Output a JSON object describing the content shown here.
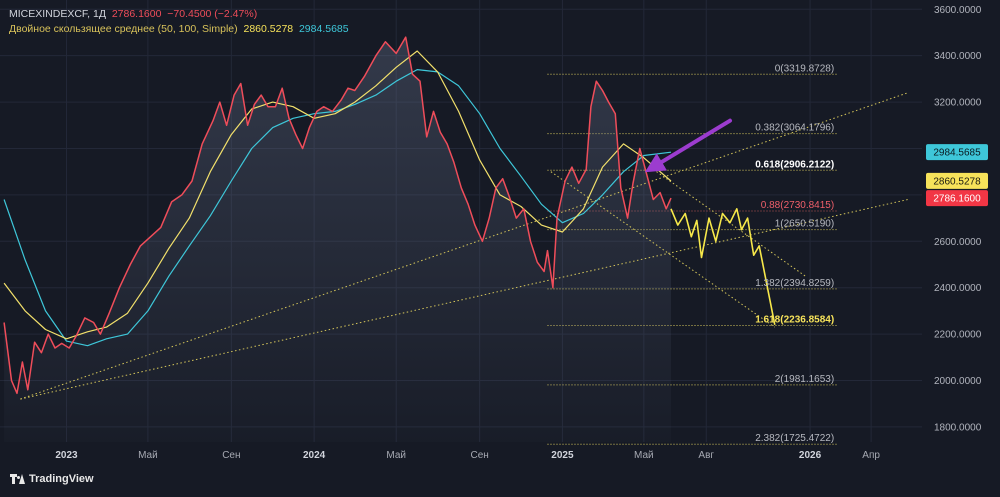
{
  "header": {
    "symbol": "MICEXINDEXCF, 1Д",
    "price": "2786.1600",
    "change": "−70.4500 (−2.47%)",
    "indicator_name": "Двойное скользящее среднее (50, 100, Simple)",
    "ma_fast": "2860.5278",
    "ma_slow": "2984.5685"
  },
  "brand": {
    "name": "TradingView",
    "icon": "tradingview-logo-icon"
  },
  "colors": {
    "background": "#161a25",
    "price_line": "#ef4d5a",
    "ma_fast": "#f2e06b",
    "ma_slow": "#3ec7d9",
    "projection": "#f7e84a",
    "fib": "#d4c55a",
    "arrow": "#9c3ccf"
  },
  "chart_data": {
    "type": "line",
    "y_axis": {
      "ylim": [
        1735,
        3640
      ],
      "ticks": [
        "3600.0000",
        "3400.0000",
        "3200.0000",
        "3000.0000",
        "2800.0000",
        "2600.0000",
        "2400.0000",
        "2200.0000",
        "2000.0000",
        "1800.0000"
      ],
      "tick_values": [
        3600,
        3400,
        3200,
        3000,
        2800,
        2600,
        2400,
        2200,
        2000,
        1800
      ]
    },
    "x_axis": {
      "labels": [
        "2023",
        "Май",
        "Сен",
        "2024",
        "Май",
        "Сен",
        "2025",
        "Май",
        "Авг",
        "2026",
        "Апр"
      ],
      "label_dates": [
        "2023-01-01",
        "2023-05-01",
        "2023-09-01",
        "2024-01-01",
        "2024-05-01",
        "2024-09-01",
        "2025-01-01",
        "2025-05-01",
        "2025-08-01",
        "2026-01-01",
        "2026-04-01"
      ],
      "range": [
        "2022-09-25",
        "2026-06-15"
      ],
      "bold_labels": [
        "2023",
        "2024",
        "2025",
        "2026"
      ]
    },
    "grid": true,
    "series": [
      {
        "role": "price",
        "points": [
          [
            "2022-10-01",
            2250
          ],
          [
            "2022-10-12",
            2000
          ],
          [
            "2022-10-20",
            1945
          ],
          [
            "2022-10-28",
            2080
          ],
          [
            "2022-11-05",
            1960
          ],
          [
            "2022-11-15",
            2165
          ],
          [
            "2022-11-25",
            2120
          ],
          [
            "2022-12-05",
            2200
          ],
          [
            "2022-12-15",
            2140
          ],
          [
            "2022-12-25",
            2160
          ],
          [
            "2023-01-05",
            2140
          ],
          [
            "2023-01-15",
            2190
          ],
          [
            "2023-01-28",
            2270
          ],
          [
            "2023-02-10",
            2250
          ],
          [
            "2023-02-20",
            2200
          ],
          [
            "2023-03-05",
            2290
          ],
          [
            "2023-03-20",
            2400
          ],
          [
            "2023-04-05",
            2500
          ],
          [
            "2023-04-20",
            2580
          ],
          [
            "2023-05-05",
            2620
          ],
          [
            "2023-05-20",
            2660
          ],
          [
            "2023-06-05",
            2770
          ],
          [
            "2023-06-20",
            2800
          ],
          [
            "2023-07-05",
            2860
          ],
          [
            "2023-07-20",
            3020
          ],
          [
            "2023-08-05",
            3120
          ],
          [
            "2023-08-15",
            3200
          ],
          [
            "2023-08-25",
            3100
          ],
          [
            "2023-09-05",
            3230
          ],
          [
            "2023-09-15",
            3280
          ],
          [
            "2023-09-25",
            3100
          ],
          [
            "2023-10-05",
            3190
          ],
          [
            "2023-10-15",
            3230
          ],
          [
            "2023-10-25",
            3180
          ],
          [
            "2023-11-05",
            3180
          ],
          [
            "2023-11-15",
            3260
          ],
          [
            "2023-11-25",
            3130
          ],
          [
            "2023-12-05",
            3060
          ],
          [
            "2023-12-15",
            3000
          ],
          [
            "2023-12-25",
            3090
          ],
          [
            "2024-01-05",
            3160
          ],
          [
            "2024-01-15",
            3180
          ],
          [
            "2024-01-28",
            3160
          ],
          [
            "2024-02-10",
            3210
          ],
          [
            "2024-02-20",
            3260
          ],
          [
            "2024-03-01",
            3250
          ],
          [
            "2024-03-15",
            3310
          ],
          [
            "2024-04-01",
            3400
          ],
          [
            "2024-04-15",
            3460
          ],
          [
            "2024-05-01",
            3410
          ],
          [
            "2024-05-15",
            3480
          ],
          [
            "2024-05-25",
            3320
          ],
          [
            "2024-06-05",
            3290
          ],
          [
            "2024-06-15",
            3050
          ],
          [
            "2024-06-25",
            3160
          ],
          [
            "2024-07-05",
            3070
          ],
          [
            "2024-07-15",
            3020
          ],
          [
            "2024-07-25",
            2940
          ],
          [
            "2024-08-05",
            2830
          ],
          [
            "2024-08-15",
            2760
          ],
          [
            "2024-08-25",
            2670
          ],
          [
            "2024-09-05",
            2600
          ],
          [
            "2024-09-15",
            2700
          ],
          [
            "2024-09-25",
            2830
          ],
          [
            "2024-10-05",
            2870
          ],
          [
            "2024-10-15",
            2790
          ],
          [
            "2024-10-25",
            2700
          ],
          [
            "2024-11-05",
            2740
          ],
          [
            "2024-11-15",
            2600
          ],
          [
            "2024-11-25",
            2510
          ],
          [
            "2024-12-05",
            2470
          ],
          [
            "2024-12-10",
            2560
          ],
          [
            "2024-12-18",
            2400
          ],
          [
            "2024-12-24",
            2700
          ],
          [
            "2025-01-05",
            2860
          ],
          [
            "2025-01-15",
            2920
          ],
          [
            "2025-01-25",
            2850
          ],
          [
            "2025-02-05",
            2910
          ],
          [
            "2025-02-12",
            3180
          ],
          [
            "2025-02-20",
            3290
          ],
          [
            "2025-03-01",
            3250
          ],
          [
            "2025-03-10",
            3200
          ],
          [
            "2025-03-20",
            3150
          ],
          [
            "2025-03-28",
            2830
          ],
          [
            "2025-04-07",
            2700
          ],
          [
            "2025-04-15",
            2850
          ],
          [
            "2025-04-25",
            3000
          ],
          [
            "2025-05-05",
            2890
          ],
          [
            "2025-05-15",
            2780
          ],
          [
            "2025-05-25",
            2810
          ],
          [
            "2025-06-03",
            2740
          ],
          [
            "2025-06-10",
            2786
          ]
        ]
      },
      {
        "role": "ma_fast",
        "value_label": "2860.5278",
        "points": [
          [
            "2022-10-01",
            2420
          ],
          [
            "2022-11-01",
            2300
          ],
          [
            "2022-12-01",
            2220
          ],
          [
            "2023-01-01",
            2180
          ],
          [
            "2023-02-01",
            2210
          ],
          [
            "2023-03-01",
            2230
          ],
          [
            "2023-04-01",
            2290
          ],
          [
            "2023-05-01",
            2420
          ],
          [
            "2023-06-01",
            2570
          ],
          [
            "2023-07-01",
            2700
          ],
          [
            "2023-08-01",
            2900
          ],
          [
            "2023-09-01",
            3060
          ],
          [
            "2023-10-01",
            3170
          ],
          [
            "2023-11-01",
            3200
          ],
          [
            "2023-12-01",
            3180
          ],
          [
            "2024-01-01",
            3130
          ],
          [
            "2024-02-01",
            3150
          ],
          [
            "2024-03-01",
            3200
          ],
          [
            "2024-04-01",
            3270
          ],
          [
            "2024-05-01",
            3350
          ],
          [
            "2024-06-01",
            3420
          ],
          [
            "2024-07-01",
            3330
          ],
          [
            "2024-08-01",
            3160
          ],
          [
            "2024-09-01",
            2950
          ],
          [
            "2024-10-01",
            2800
          ],
          [
            "2024-11-01",
            2750
          ],
          [
            "2024-12-01",
            2670
          ],
          [
            "2025-01-01",
            2640
          ],
          [
            "2025-02-01",
            2740
          ],
          [
            "2025-03-01",
            2920
          ],
          [
            "2025-04-01",
            3020
          ],
          [
            "2025-05-01",
            2960
          ],
          [
            "2025-06-10",
            2860
          ]
        ]
      },
      {
        "role": "ma_slow",
        "value_label": "2984.5685",
        "points": [
          [
            "2022-10-01",
            2780
          ],
          [
            "2022-11-01",
            2520
          ],
          [
            "2022-12-01",
            2300
          ],
          [
            "2023-01-01",
            2170
          ],
          [
            "2023-02-01",
            2150
          ],
          [
            "2023-03-01",
            2180
          ],
          [
            "2023-04-01",
            2200
          ],
          [
            "2023-05-01",
            2300
          ],
          [
            "2023-06-01",
            2450
          ],
          [
            "2023-07-01",
            2580
          ],
          [
            "2023-08-01",
            2710
          ],
          [
            "2023-09-01",
            2860
          ],
          [
            "2023-10-01",
            3000
          ],
          [
            "2023-11-01",
            3090
          ],
          [
            "2023-12-01",
            3130
          ],
          [
            "2024-01-01",
            3150
          ],
          [
            "2024-02-01",
            3160
          ],
          [
            "2024-03-01",
            3190
          ],
          [
            "2024-04-01",
            3230
          ],
          [
            "2024-05-01",
            3290
          ],
          [
            "2024-06-01",
            3340
          ],
          [
            "2024-07-01",
            3330
          ],
          [
            "2024-08-01",
            3270
          ],
          [
            "2024-09-01",
            3150
          ],
          [
            "2024-10-01",
            3000
          ],
          [
            "2024-11-01",
            2880
          ],
          [
            "2024-12-01",
            2760
          ],
          [
            "2025-01-01",
            2680
          ],
          [
            "2025-02-01",
            2720
          ],
          [
            "2025-03-01",
            2800
          ],
          [
            "2025-04-01",
            2900
          ],
          [
            "2025-05-01",
            2970
          ],
          [
            "2025-06-10",
            2984
          ]
        ]
      },
      {
        "role": "projection",
        "points": [
          [
            "2025-06-10",
            2740
          ],
          [
            "2025-06-20",
            2670
          ],
          [
            "2025-07-01",
            2720
          ],
          [
            "2025-07-10",
            2620
          ],
          [
            "2025-07-18",
            2690
          ],
          [
            "2025-07-25",
            2530
          ],
          [
            "2025-08-05",
            2700
          ],
          [
            "2025-08-15",
            2600
          ],
          [
            "2025-08-25",
            2720
          ],
          [
            "2025-09-05",
            2680
          ],
          [
            "2025-09-15",
            2740
          ],
          [
            "2025-09-22",
            2650
          ],
          [
            "2025-10-01",
            2700
          ],
          [
            "2025-10-10",
            2540
          ],
          [
            "2025-10-18",
            2580
          ],
          [
            "2025-11-10",
            2240
          ]
        ]
      }
    ],
    "trendlines": [
      {
        "from": [
          "2022-10-25",
          1920
        ],
        "to": [
          "2026-05-25",
          3240
        ]
      },
      {
        "from": [
          "2022-10-25",
          1920
        ],
        "to": [
          "2026-05-25",
          2780
        ]
      },
      {
        "from": [
          "2024-12-15",
          2900
        ],
        "to": [
          "2025-11-10",
          2230
        ]
      },
      {
        "from": [
          "2025-05-10",
          2920
        ],
        "to": [
          "2025-12-25",
          2450
        ]
      }
    ],
    "fib_levels": [
      {
        "label": "0(3319.8728)",
        "value": 3319.8728
      },
      {
        "label": "0.382(3064.1796)",
        "value": 3064.1796
      },
      {
        "label": "0.618(2906.2122)",
        "value": 2906.2122
      },
      {
        "label": "0.88(2730.8415)",
        "value": 2730.8415
      },
      {
        "label": "1(2650.5190)",
        "value": 2650.519
      },
      {
        "label": "1.382(2394.8259)",
        "value": 2394.8259
      },
      {
        "label": "1.618(2236.8584)",
        "value": 2236.8584
      },
      {
        "label": "2(1981.1653)",
        "value": 1981.1653
      },
      {
        "label": "2.382(1725.4722)",
        "value": 1725.4722
      }
    ],
    "fib_range": [
      "2024-12-10",
      "2026-02-10"
    ],
    "price_badges": [
      {
        "text": "2984.5685",
        "value": 2984.5685,
        "role": "ma_slow"
      },
      {
        "text": "2860.5278",
        "value": 2860.5278,
        "role": "ma_fast"
      },
      {
        "text": "2786.1600",
        "value": 2786.16,
        "role": "price"
      }
    ],
    "annotations": [
      {
        "type": "arrow",
        "from": [
          "2025-09-05",
          3120
        ],
        "to": [
          "2025-05-15",
          2920
        ]
      }
    ]
  }
}
